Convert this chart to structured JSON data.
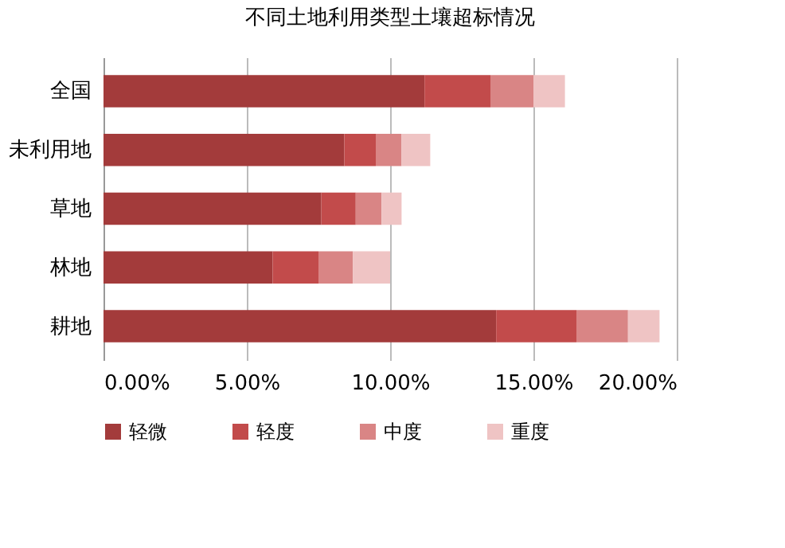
{
  "chart_data": {
    "type": "bar",
    "orientation": "horizontal",
    "stacked": true,
    "title": "不同土地利用类型土壤超标情况",
    "categories": [
      "全国",
      "未利用地",
      "草地",
      "林地",
      "耕地"
    ],
    "series": [
      {
        "name": "轻微",
        "color": "#a33b3b",
        "values": [
          11.2,
          8.4,
          7.6,
          5.9,
          13.7
        ]
      },
      {
        "name": "轻度",
        "color": "#c24b4b",
        "values": [
          2.3,
          1.1,
          1.2,
          1.6,
          2.8
        ]
      },
      {
        "name": "中度",
        "color": "#d98585",
        "values": [
          1.5,
          0.9,
          0.9,
          1.2,
          1.8
        ]
      },
      {
        "name": "重度",
        "color": "#efc4c4",
        "values": [
          1.1,
          1.0,
          0.7,
          1.3,
          1.1
        ]
      }
    ],
    "xlim": [
      0,
      20
    ],
    "xticks": [
      {
        "value": 0,
        "label": "0.00%"
      },
      {
        "value": 5,
        "label": "5.00%"
      },
      {
        "value": 10,
        "label": "10.00%"
      },
      {
        "value": 15,
        "label": "15.00%"
      },
      {
        "value": 20,
        "label": "20.00%"
      }
    ],
    "grid": "x",
    "legend": "bottom"
  }
}
